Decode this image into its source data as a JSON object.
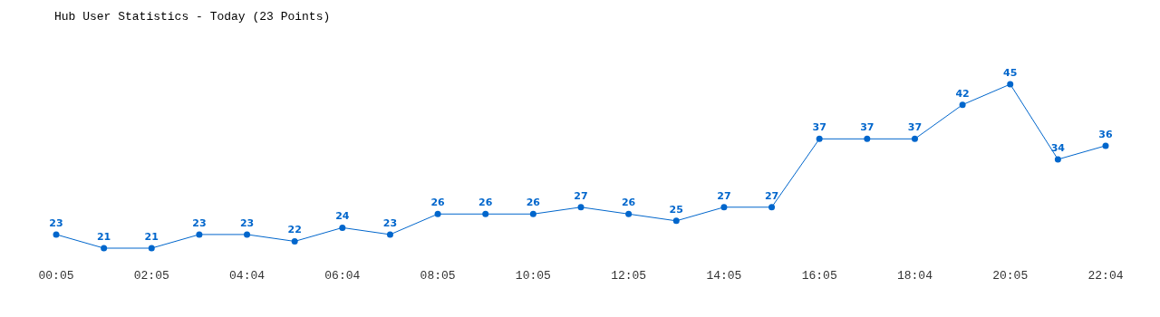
{
  "chart_data": {
    "type": "line",
    "title": "Hub User Statistics - Today (23 Points)",
    "categories": [
      "00:05",
      null,
      "02:05",
      null,
      "04:04",
      null,
      "06:04",
      null,
      "08:05",
      null,
      "10:05",
      null,
      "12:05",
      null,
      "14:05",
      null,
      "16:05",
      null,
      "18:04",
      null,
      "20:05",
      null,
      "22:04"
    ],
    "series": [
      {
        "color": "#0066cc",
        "values": [
          23,
          21,
          21,
          23,
          23,
          22,
          24,
          23,
          26,
          26,
          26,
          27,
          26,
          25,
          27,
          27,
          37,
          37,
          37,
          42,
          45,
          34,
          36
        ]
      }
    ],
    "data_labels": true,
    "marker": "circle"
  }
}
